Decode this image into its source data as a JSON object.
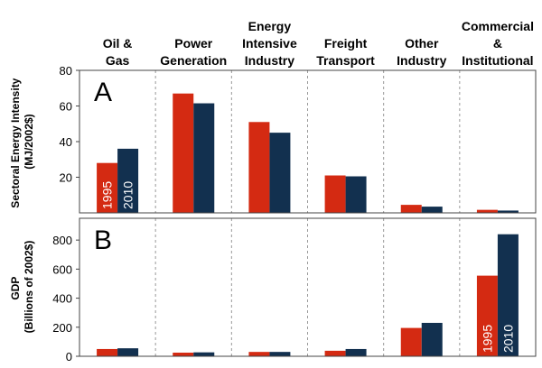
{
  "colors": {
    "s1995": "#d42a12",
    "s2010": "#12304f"
  },
  "chart_data": [
    {
      "panel": "A",
      "type": "bar",
      "categories": [
        [
          "Oil &",
          "Gas"
        ],
        [
          "Power",
          "Generation"
        ],
        [
          "Energy",
          "Intensive",
          "Industry"
        ],
        [
          "Freight",
          "Transport"
        ],
        [
          "Other",
          "Industry"
        ],
        [
          "Commercial",
          "&",
          "Institutional"
        ]
      ],
      "series": [
        {
          "name": "1995",
          "values": [
            28,
            67,
            51,
            21,
            4.5,
            1.7
          ]
        },
        {
          "name": "2010",
          "values": [
            36,
            61.5,
            45,
            20.5,
            3.5,
            1.3
          ]
        }
      ],
      "ylabel": [
        "Sectoral Energy Intensity",
        "(MJ/2002$)"
      ],
      "ylim": [
        0,
        80
      ],
      "yticks": [
        20,
        40,
        60,
        80
      ],
      "series_label_category": 0
    },
    {
      "panel": "B",
      "type": "bar",
      "series": [
        {
          "name": "1995",
          "values": [
            50,
            25,
            30,
            38,
            195,
            555
          ]
        },
        {
          "name": "2010",
          "values": [
            55,
            27,
            30,
            50,
            230,
            840
          ]
        }
      ],
      "ylabel": [
        "GDP",
        "(Billions of 2002$)"
      ],
      "ylim": [
        0,
        950
      ],
      "yticks": [
        0,
        200,
        400,
        600,
        800
      ],
      "series_label_category": 5
    }
  ]
}
